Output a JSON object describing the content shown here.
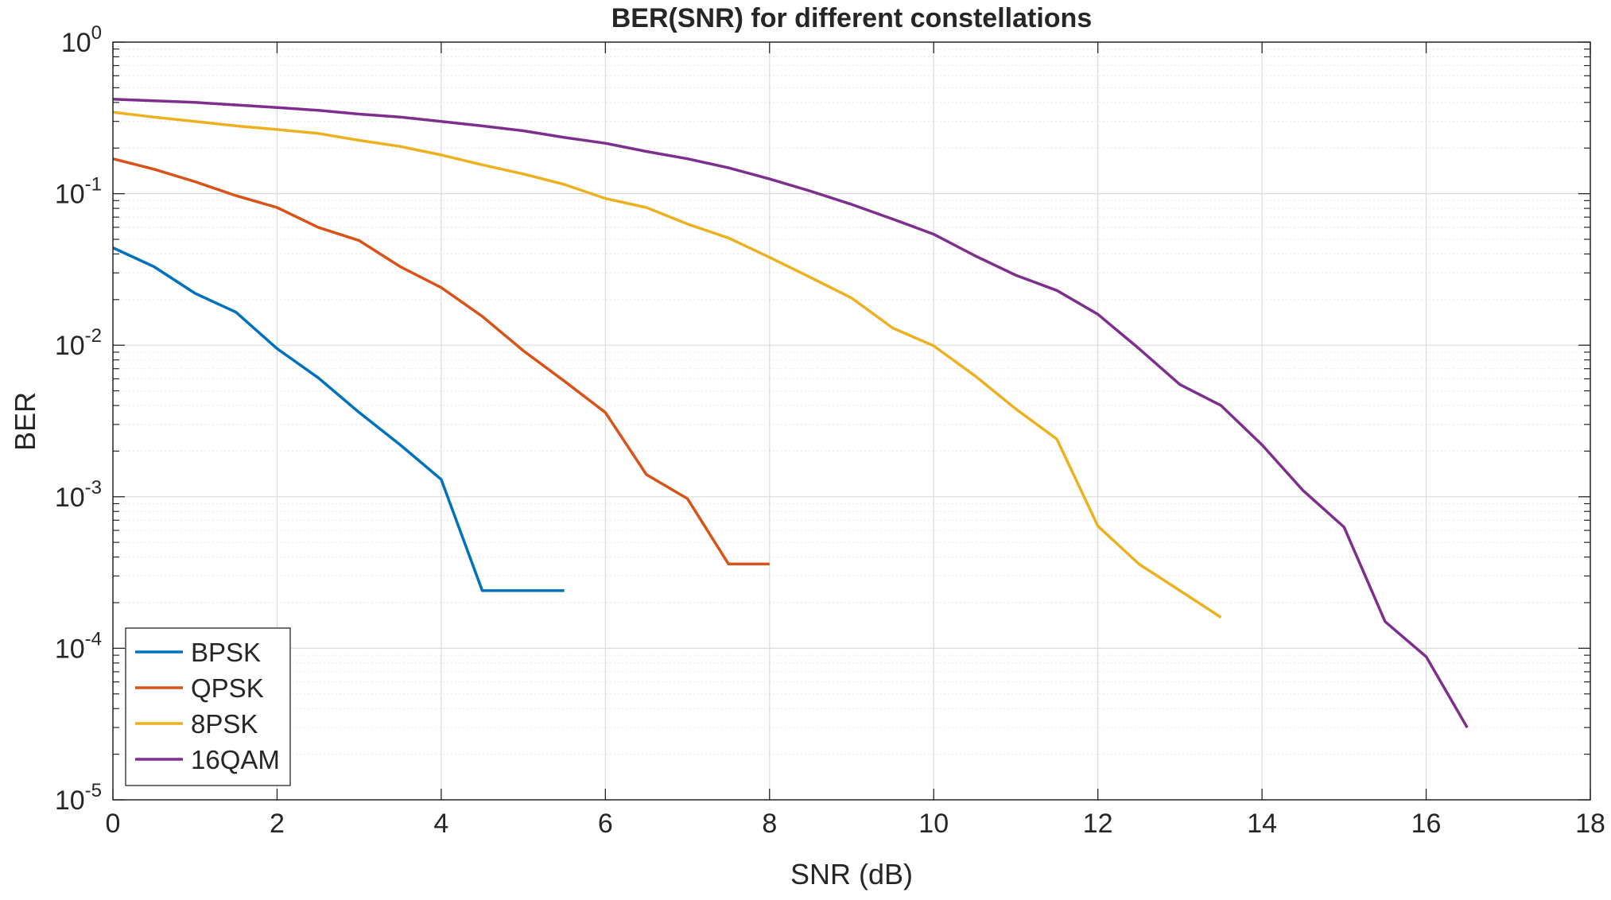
{
  "chart_data": {
    "type": "line",
    "title": "BER(SNR) for different constellations",
    "xlabel": "SNR (dB)",
    "ylabel": "BER",
    "xlim": [
      0,
      18
    ],
    "ylim": [
      1e-05,
      1
    ],
    "yscale": "log",
    "grid": true,
    "minor_grid": true,
    "legend_position": "bottom-left",
    "xticks": [
      "0",
      "2",
      "4",
      "6",
      "8",
      "10",
      "12",
      "14",
      "16",
      "18"
    ],
    "yticks": [
      {
        "base": "10",
        "exp": "0"
      },
      {
        "base": "10",
        "exp": "-1"
      },
      {
        "base": "10",
        "exp": "-2"
      },
      {
        "base": "10",
        "exp": "-3"
      },
      {
        "base": "10",
        "exp": "-4"
      },
      {
        "base": "10",
        "exp": "-5"
      }
    ],
    "series": [
      {
        "name": "BPSK",
        "color": "#0072bd",
        "x": [
          0,
          0.5,
          1,
          1.5,
          2,
          2.5,
          3,
          3.5,
          4,
          4.5,
          5,
          5.5
        ],
        "y": [
          0.044,
          0.033,
          0.022,
          0.0165,
          0.0095,
          0.0061,
          0.0036,
          0.0022,
          0.0013,
          0.00024,
          0.00024,
          0.00024
        ]
      },
      {
        "name": "QPSK",
        "color": "#d95319",
        "x": [
          0,
          0.5,
          1,
          1.5,
          2,
          2.5,
          3,
          3.5,
          4,
          4.5,
          5,
          5.5,
          6,
          6.5,
          7,
          7.5,
          8
        ],
        "y": [
          0.17,
          0.145,
          0.12,
          0.097,
          0.081,
          0.06,
          0.049,
          0.033,
          0.024,
          0.0155,
          0.0092,
          0.0058,
          0.0036,
          0.0014,
          0.00097,
          0.00036,
          0.00036
        ]
      },
      {
        "name": "8PSK",
        "color": "#edb120",
        "x": [
          0,
          0.5,
          1,
          1.5,
          2,
          2.5,
          3,
          3.5,
          4,
          4.5,
          5,
          5.5,
          6,
          6.5,
          7,
          7.5,
          8,
          8.5,
          9,
          9.5,
          10,
          10.5,
          11,
          11.5,
          12,
          12.5,
          13,
          13.5
        ],
        "y": [
          0.345,
          0.32,
          0.3,
          0.28,
          0.265,
          0.25,
          0.225,
          0.205,
          0.18,
          0.155,
          0.135,
          0.115,
          0.093,
          0.081,
          0.063,
          0.051,
          0.038,
          0.028,
          0.0205,
          0.013,
          0.0099,
          0.0063,
          0.0038,
          0.0024,
          0.00064,
          0.00036,
          0.00024,
          0.00016
        ]
      },
      {
        "name": "16QAM",
        "color": "#7e2f8e",
        "x": [
          0,
          0.5,
          1,
          1.5,
          2,
          2.5,
          3,
          3.5,
          4,
          4.5,
          5,
          5.5,
          6,
          6.5,
          7,
          7.5,
          8,
          8.5,
          9,
          9.5,
          10,
          10.5,
          11,
          11.5,
          12,
          12.5,
          13,
          13.5,
          14,
          14.5,
          15,
          15.5,
          16,
          16.5
        ],
        "y": [
          0.42,
          0.41,
          0.4,
          0.385,
          0.37,
          0.355,
          0.335,
          0.32,
          0.3,
          0.28,
          0.26,
          0.235,
          0.215,
          0.19,
          0.17,
          0.148,
          0.125,
          0.104,
          0.085,
          0.068,
          0.054,
          0.039,
          0.029,
          0.023,
          0.016,
          0.0095,
          0.0055,
          0.004,
          0.0022,
          0.0011,
          0.00063,
          0.00015,
          8.8e-05,
          3e-05
        ]
      }
    ]
  }
}
